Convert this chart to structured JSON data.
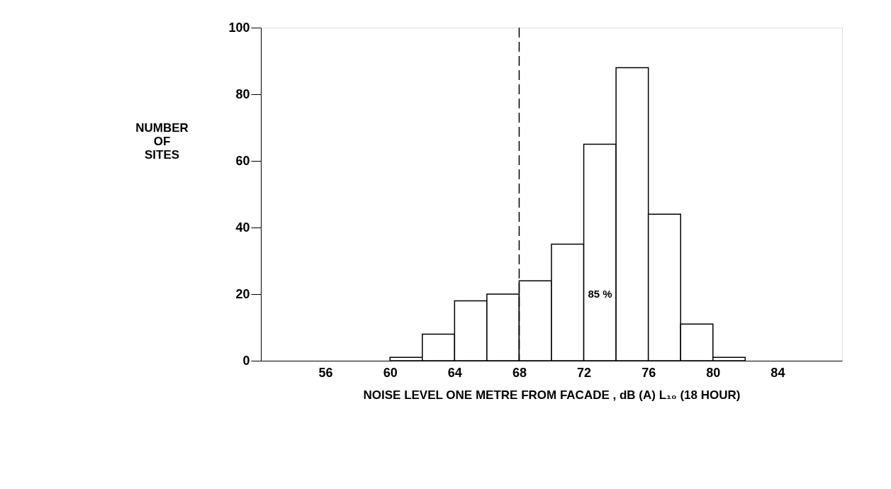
{
  "chart_data": {
    "type": "histogram",
    "bins": [
      60,
      62,
      64,
      66,
      68,
      70,
      72,
      74,
      76,
      78,
      80,
      82
    ],
    "values": [
      1,
      8,
      18,
      20,
      24,
      35,
      65,
      88,
      44,
      11,
      1
    ],
    "color": "#000000",
    "xlabel": "NOISE  LEVEL  ONE  METRE  FROM  FACADE , dB (A) L₁₀ (18 HOUR)",
    "ylabel": "NUMBER OF SITES",
    "xlim": [
      52,
      88
    ],
    "xticks": [
      56,
      60,
      64,
      68,
      72,
      76,
      80,
      84
    ],
    "ylim": [
      0,
      100
    ],
    "yticks": [
      0,
      20,
      40,
      60,
      80,
      100
    ],
    "ref_lines": [
      {
        "axis": "x",
        "value": 68,
        "line_style": "dashed",
        "color": "#000000"
      }
    ],
    "annotations": [
      "85 %"
    ],
    "grid": false
  }
}
